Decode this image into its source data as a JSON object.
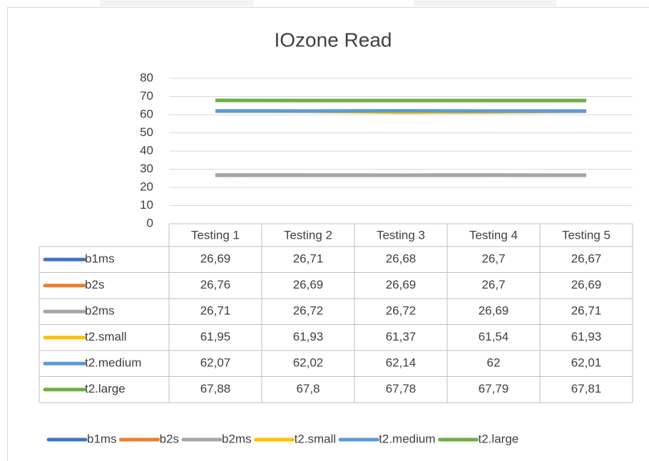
{
  "chart_data": {
    "type": "line",
    "title": "IOzone Read",
    "categories": [
      "Testing 1",
      "Testing 2",
      "Testing 3",
      "Testing 4",
      "Testing 5"
    ],
    "series": [
      {
        "name": "b1ms",
        "color": "#4472c4",
        "values": [
          26.69,
          26.71,
          26.68,
          26.7,
          26.67
        ],
        "value_labels": [
          "26,69",
          "26,71",
          "26,68",
          "26,7",
          "26,67"
        ]
      },
      {
        "name": "b2s",
        "color": "#ed7d31",
        "values": [
          26.76,
          26.69,
          26.69,
          26.7,
          26.69
        ],
        "value_labels": [
          "26,76",
          "26,69",
          "26,69",
          "26,7",
          "26,69"
        ]
      },
      {
        "name": "b2ms",
        "color": "#a5a5a5",
        "values": [
          26.71,
          26.72,
          26.72,
          26.69,
          26.71
        ],
        "value_labels": [
          "26,71",
          "26,72",
          "26,72",
          "26,69",
          "26,71"
        ]
      },
      {
        "name": "t2.small",
        "color": "#ffc000",
        "values": [
          61.95,
          61.93,
          61.37,
          61.54,
          61.93
        ],
        "value_labels": [
          "61,95",
          "61,93",
          "61,37",
          "61,54",
          "61,93"
        ]
      },
      {
        "name": "t2.medium",
        "color": "#5b9bd5",
        "values": [
          62.07,
          62.02,
          62.14,
          62,
          62.01
        ],
        "value_labels": [
          "62,07",
          "62,02",
          "62,14",
          "62",
          "62,01"
        ]
      },
      {
        "name": "t2.large",
        "color": "#70ad47",
        "values": [
          67.88,
          67.8,
          67.78,
          67.79,
          67.81
        ],
        "value_labels": [
          "67,88",
          "67,8",
          "67,78",
          "67,79",
          "67,81"
        ]
      }
    ],
    "ylim": [
      0,
      80
    ],
    "yticks": [
      0,
      10,
      20,
      30,
      40,
      50,
      60,
      70,
      80
    ],
    "grid": true,
    "legend": "bottom"
  }
}
